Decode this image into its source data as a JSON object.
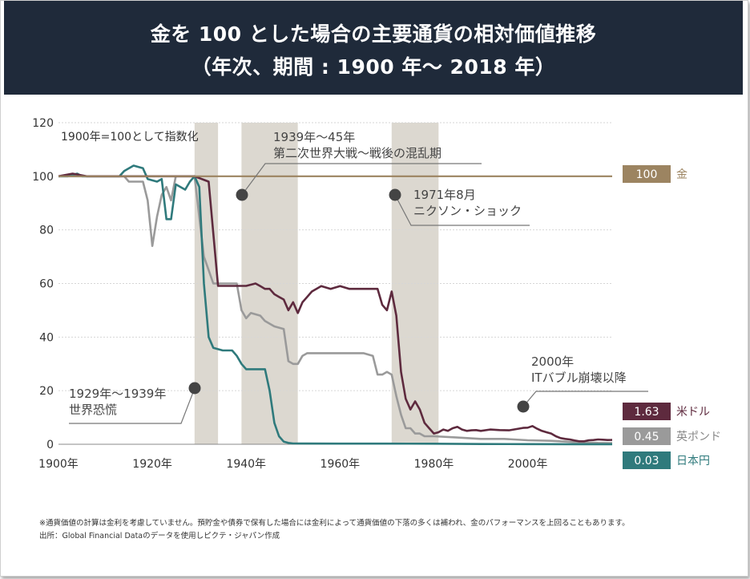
{
  "header": {
    "title_line1": "金を 100 とした場合の主要通貨の相対価値推移",
    "title_line2": "（年次、期間 : 1900 年〜 2018 年）"
  },
  "colors": {
    "gold": "#9c8461",
    "usd": "#5e2a3e",
    "gbp": "#9a9a9a",
    "jpy": "#2f7a7c",
    "band": "#dcd8d0",
    "header_bg": "#1f2a3a"
  },
  "chart_data": {
    "type": "line",
    "index_note": "1900年=100として指数化",
    "xlim": [
      1900,
      2018
    ],
    "ylim": [
      0,
      120
    ],
    "y_ticks": [
      "0",
      "20",
      "40",
      "60",
      "80",
      "100",
      "120"
    ],
    "x_ticks": [
      "1900年",
      "1920年",
      "1940年",
      "1960年",
      "1980年",
      "2000年"
    ],
    "grid": true,
    "shaded_periods": [
      [
        1929,
        1934
      ],
      [
        1939,
        1951
      ],
      [
        1971,
        1981
      ]
    ],
    "series": [
      {
        "name": "金",
        "end_label": "100",
        "color": "#9c8461",
        "points": [
          [
            1900,
            100
          ],
          [
            2018,
            100
          ]
        ]
      },
      {
        "name": "米ドル",
        "end_label": "1.63",
        "color": "#5e2a3e",
        "points": [
          [
            1900,
            100
          ],
          [
            1903,
            101
          ],
          [
            1906,
            100
          ],
          [
            1910,
            100
          ],
          [
            1915,
            100
          ],
          [
            1920,
            100
          ],
          [
            1925,
            100
          ],
          [
            1929,
            100
          ],
          [
            1932,
            98
          ],
          [
            1934,
            59.1
          ],
          [
            1935,
            59.1
          ],
          [
            1937,
            59.1
          ],
          [
            1940,
            59.1
          ],
          [
            1942,
            60
          ],
          [
            1943,
            59
          ],
          [
            1944,
            58
          ],
          [
            1945,
            58
          ],
          [
            1946,
            56
          ],
          [
            1947,
            55
          ],
          [
            1948,
            54
          ],
          [
            1949,
            50
          ],
          [
            1950,
            53
          ],
          [
            1951,
            49
          ],
          [
            1952,
            53
          ],
          [
            1953,
            55
          ],
          [
            1954,
            57
          ],
          [
            1956,
            59
          ],
          [
            1958,
            58
          ],
          [
            1960,
            59
          ],
          [
            1962,
            58
          ],
          [
            1964,
            58
          ],
          [
            1966,
            58
          ],
          [
            1968,
            58
          ],
          [
            1969,
            52
          ],
          [
            1970,
            50
          ],
          [
            1971,
            57
          ],
          [
            1972,
            48
          ],
          [
            1973,
            27
          ],
          [
            1974,
            17
          ],
          [
            1975,
            13
          ],
          [
            1976,
            16
          ],
          [
            1977,
            13
          ],
          [
            1978,
            8
          ],
          [
            1979,
            6
          ],
          [
            1980,
            4
          ],
          [
            1981,
            4.5
          ],
          [
            1982,
            5.5
          ],
          [
            1983,
            5
          ],
          [
            1984,
            6
          ],
          [
            1985,
            6.5
          ],
          [
            1986,
            5.5
          ],
          [
            1987,
            5
          ],
          [
            1988,
            5.2
          ],
          [
            1989,
            5.3
          ],
          [
            1990,
            5
          ],
          [
            1992,
            5.5
          ],
          [
            1994,
            5.3
          ],
          [
            1996,
            5.2
          ],
          [
            1998,
            5.8
          ],
          [
            1999,
            6.1
          ],
          [
            2000,
            6.2
          ],
          [
            2001,
            6.8
          ],
          [
            2002,
            5.8
          ],
          [
            2003,
            5
          ],
          [
            2004,
            4.5
          ],
          [
            2005,
            4
          ],
          [
            2006,
            3
          ],
          [
            2007,
            2.3
          ],
          [
            2008,
            2
          ],
          [
            2009,
            1.8
          ],
          [
            2010,
            1.4
          ],
          [
            2011,
            1.1
          ],
          [
            2012,
            1.1
          ],
          [
            2013,
            1.5
          ],
          [
            2014,
            1.6
          ],
          [
            2015,
            1.8
          ],
          [
            2016,
            1.7
          ],
          [
            2017,
            1.6
          ],
          [
            2018,
            1.63
          ]
        ]
      },
      {
        "name": "英ポンド",
        "end_label": "0.45",
        "color": "#9a9a9a",
        "points": [
          [
            1900,
            100
          ],
          [
            1910,
            100
          ],
          [
            1914,
            100
          ],
          [
            1915,
            98
          ],
          [
            1918,
            98
          ],
          [
            1919,
            91
          ],
          [
            1920,
            74
          ],
          [
            1921,
            85
          ],
          [
            1922,
            93
          ],
          [
            1923,
            96
          ],
          [
            1924,
            91
          ],
          [
            1925,
            100
          ],
          [
            1929,
            100
          ],
          [
            1931,
            70
          ],
          [
            1932,
            65
          ],
          [
            1933,
            60
          ],
          [
            1936,
            60
          ],
          [
            1938,
            60
          ],
          [
            1939,
            50
          ],
          [
            1940,
            47
          ],
          [
            1941,
            49
          ],
          [
            1943,
            48
          ],
          [
            1944,
            46
          ],
          [
            1945,
            45
          ],
          [
            1946,
            44
          ],
          [
            1948,
            43
          ],
          [
            1949,
            31
          ],
          [
            1950,
            30
          ],
          [
            1951,
            30
          ],
          [
            1952,
            33
          ],
          [
            1953,
            34
          ],
          [
            1955,
            34
          ],
          [
            1957,
            34
          ],
          [
            1960,
            34
          ],
          [
            1962,
            34
          ],
          [
            1965,
            34
          ],
          [
            1967,
            33
          ],
          [
            1968,
            26
          ],
          [
            1969,
            26
          ],
          [
            1970,
            27
          ],
          [
            1971,
            26
          ],
          [
            1972,
            18
          ],
          [
            1973,
            11
          ],
          [
            1974,
            6
          ],
          [
            1975,
            6
          ],
          [
            1976,
            4
          ],
          [
            1977,
            4
          ],
          [
            1978,
            3
          ],
          [
            1979,
            3
          ],
          [
            1980,
            3
          ],
          [
            1985,
            2.5
          ],
          [
            1990,
            2
          ],
          [
            1995,
            2
          ],
          [
            2000,
            1.5
          ],
          [
            2005,
            1.3
          ],
          [
            2010,
            0.8
          ],
          [
            2015,
            0.5
          ],
          [
            2018,
            0.45
          ]
        ]
      },
      {
        "name": "日本円",
        "end_label": "0.03",
        "color": "#2f7a7c",
        "points": [
          [
            1900,
            100
          ],
          [
            1902,
            100
          ],
          [
            1904,
            101
          ],
          [
            1905,
            100
          ],
          [
            1907,
            100
          ],
          [
            1910,
            100
          ],
          [
            1913,
            100
          ],
          [
            1914,
            102
          ],
          [
            1916,
            104
          ],
          [
            1918,
            103
          ],
          [
            1919,
            99
          ],
          [
            1921,
            98
          ],
          [
            1922,
            99
          ],
          [
            1923,
            84
          ],
          [
            1924,
            84
          ],
          [
            1925,
            97
          ],
          [
            1927,
            95
          ],
          [
            1928,
            98
          ],
          [
            1929,
            100
          ],
          [
            1930,
            96
          ],
          [
            1931,
            60
          ],
          [
            1932,
            40
          ],
          [
            1933,
            36
          ],
          [
            1935,
            35
          ],
          [
            1937,
            35
          ],
          [
            1938,
            33
          ],
          [
            1939,
            30
          ],
          [
            1940,
            28
          ],
          [
            1942,
            28
          ],
          [
            1944,
            28
          ],
          [
            1945,
            20
          ],
          [
            1946,
            8
          ],
          [
            1947,
            3
          ],
          [
            1948,
            1
          ],
          [
            1949,
            0.5
          ],
          [
            1950,
            0.3
          ],
          [
            1960,
            0.25
          ],
          [
            1970,
            0.25
          ],
          [
            1980,
            0.2
          ],
          [
            1990,
            0.1
          ],
          [
            2000,
            0.06
          ],
          [
            2010,
            0.04
          ],
          [
            2018,
            0.03
          ]
        ]
      }
    ],
    "annotations": [
      {
        "label_lines": [
          "1929年〜1939年",
          "世界恐慌"
        ],
        "x": 1929,
        "y": 21
      },
      {
        "label_lines": [
          "1939年〜45年",
          "第二次世界大戦〜戦後の混乱期"
        ],
        "x": 1940,
        "y": 93
      },
      {
        "label_lines": [
          "1971年8月",
          "ニクソン・ショック"
        ],
        "x": 1971,
        "y": 93
      },
      {
        "label_lines": [
          "2000年",
          "ITバブル崩壊以降"
        ],
        "x": 2000,
        "y": 13
      }
    ]
  },
  "footnotes": [
    "※通貨価値の計算は金利を考慮していません。預貯金や債券で保有した場合には金利によって通貨価値の下落の多くは補われ、金のパフォーマンスを上回ることもあります。",
    "出所：Global Financial Dataのデータを使用しピクテ・ジャパン作成"
  ]
}
